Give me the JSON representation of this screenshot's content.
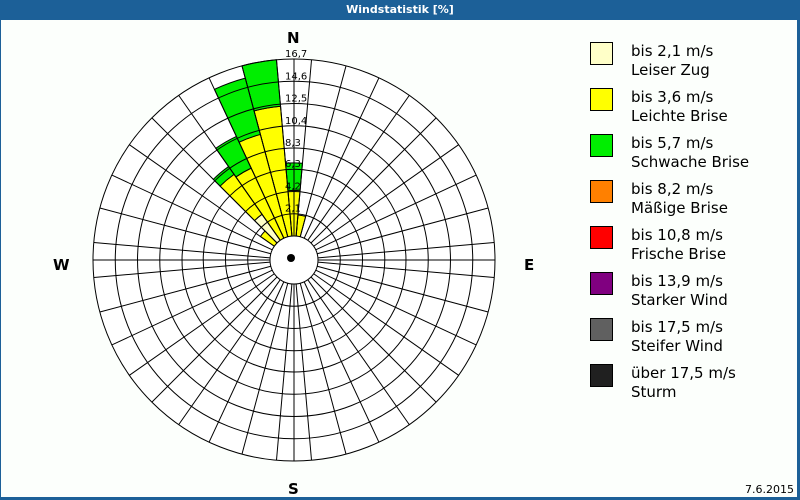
{
  "window": {
    "title": "Windstatistik [%]"
  },
  "footer": {
    "date": "7.6.2015"
  },
  "compass": {
    "n": "N",
    "e": "E",
    "s": "S",
    "w": "W"
  },
  "legend": [
    {
      "speed": "bis 2,1 m/s",
      "name": "Leiser Zug",
      "color": "#ffffc8"
    },
    {
      "speed": "bis 3,6 m/s",
      "name": "Leichte Brise",
      "color": "#ffff00"
    },
    {
      "speed": "bis 5,7 m/s",
      "name": "Schwache Brise",
      "color": "#00ee00"
    },
    {
      "speed": "bis 8,2 m/s",
      "name": "Mäßige Brise",
      "color": "#ff8000"
    },
    {
      "speed": "bis 10,8 m/s",
      "name": "Frische Brise",
      "color": "#ff0000"
    },
    {
      "speed": "bis 13,9 m/s",
      "name": "Starker Wind",
      "color": "#800080"
    },
    {
      "speed": "bis 17,5 m/s",
      "name": "Steifer Wind",
      "color": "#606060"
    },
    {
      "speed": "über 17,5 m/s",
      "name": "Sturm",
      "color": "#202020"
    }
  ],
  "chart_data": {
    "type": "polar-stacked-bar (wind rose)",
    "title": "Windstatistik [%]",
    "unit": "%",
    "radial_ticks": [
      "2,1",
      "4,2",
      "6,3",
      "8,3",
      "10,4",
      "12,5",
      "14,6",
      "16,7"
    ],
    "radial_tick_values": [
      2.1,
      4.2,
      6.3,
      8.3,
      10.4,
      12.5,
      14.6,
      16.7
    ],
    "rmax": 16.7,
    "sector_width_deg": 10,
    "categories_speed_classes": [
      "bis 2,1 m/s",
      "bis 3,6 m/s",
      "bis 5,7 m/s",
      "bis 8,2 m/s",
      "bis 10,8 m/s",
      "bis 13,9 m/s",
      "bis 17,5 m/s",
      "über 17,5 m/s"
    ],
    "sectors": [
      {
        "bearing": 10,
        "values": [
          0.0,
          2.0,
          0.0,
          0,
          0,
          0,
          0,
          0
        ]
      },
      {
        "bearing": 0,
        "values": [
          0.0,
          4.3,
          2.6,
          0,
          0,
          0,
          0,
          0
        ]
      },
      {
        "bearing": 350,
        "values": [
          0.0,
          12.3,
          4.4,
          0,
          0,
          0,
          0,
          0
        ]
      },
      {
        "bearing": 340,
        "values": [
          0.0,
          10.0,
          5.5,
          0,
          0,
          0,
          0,
          0
        ]
      },
      {
        "bearing": 330,
        "values": [
          0.0,
          7.3,
          3.3,
          0,
          0,
          0,
          0,
          0
        ]
      },
      {
        "bearing": 320,
        "values": [
          3.0,
          4.6,
          0.9,
          0,
          0,
          0,
          0,
          0
        ]
      },
      {
        "bearing": 310,
        "values": [
          0.0,
          1.6,
          0.0,
          0,
          0,
          0,
          0,
          0
        ]
      }
    ],
    "legend_position": "right"
  }
}
